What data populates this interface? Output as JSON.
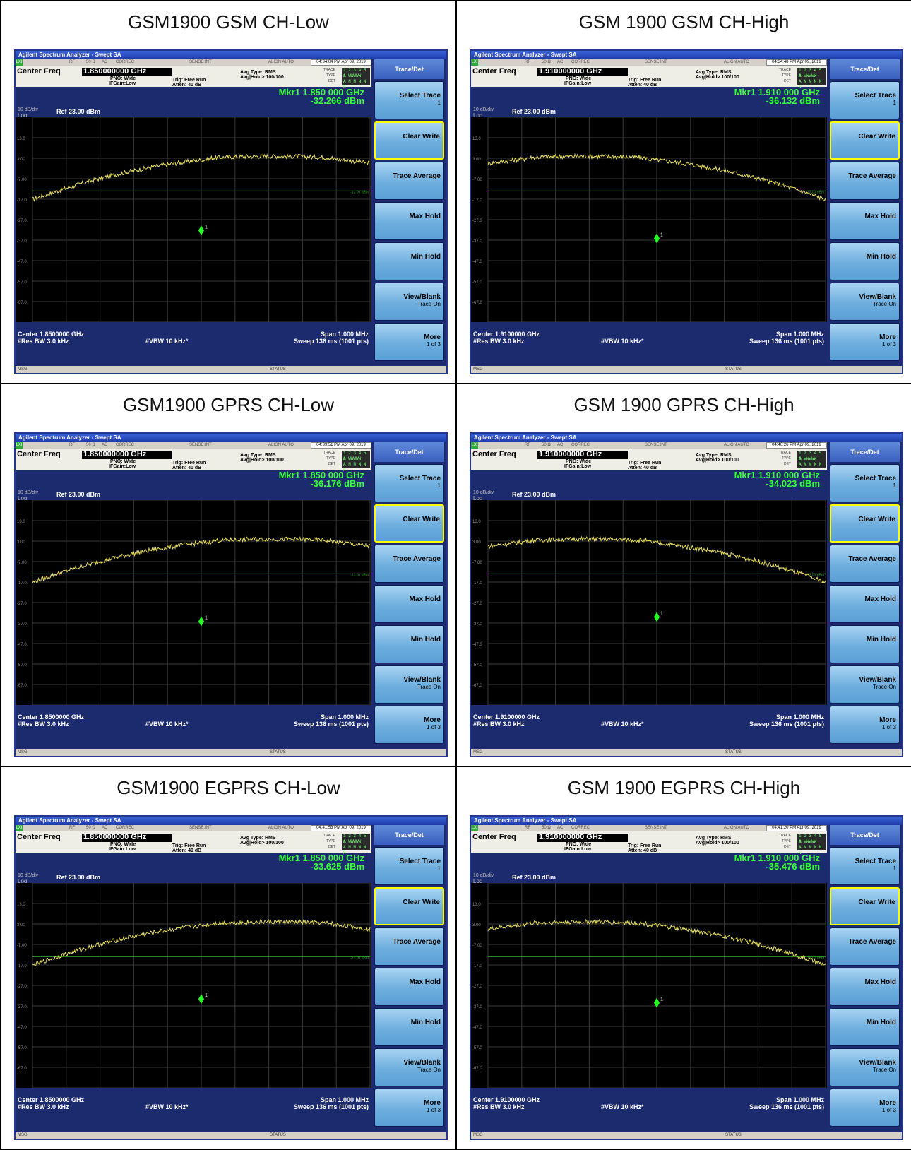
{
  "common": {
    "window_title": "Agilent Spectrum Analyzer - Swept SA",
    "status_items": [
      "RF",
      "50 Ω",
      "AC",
      "CORREC",
      "SENSE:INT",
      "ALIGN AUTO"
    ],
    "lxi": "LXI",
    "center_freq_label": "Center Freq",
    "pno": "PNO: Wide",
    "ifgain": "IFGain:Low",
    "trig": "Trig: Free Run",
    "atten": "Atten: 40 dB",
    "avg_type": "Avg Type: RMS",
    "avg_hold": "Avg|Hold> 100/100",
    "trace_labels": [
      "TRACE",
      "TYPE",
      "DET"
    ],
    "trace_vals": [
      "1 2 3 4 5 6",
      "A WWWWW",
      "A N N N N N"
    ],
    "scale_div": "10 dB/div",
    "scale_log": "Log",
    "ref": "Ref 23.00 dBm",
    "y_ticks": [
      "13.0",
      "3.00",
      "-7.00",
      "-17.0",
      "-27.0",
      "-37.0",
      "-47.0",
      "-57.0",
      "-67.0"
    ],
    "limit_label": "-13.00 dBm",
    "res_bw": "#Res BW 3.0 kHz",
    "vbw": "#VBW 10 kHz*",
    "span": "Span 1.000 MHz",
    "sweep": "Sweep  136 ms (1001 pts)",
    "msg": "MSG",
    "status": "STATUS",
    "marker_number": "1",
    "softkeys": {
      "header": "Trace/Det",
      "items": [
        {
          "main": "Select Trace",
          "sub": "1"
        },
        {
          "main": "Clear Write",
          "sub": ""
        },
        {
          "main": "Trace Average",
          "sub": ""
        },
        {
          "main": "Max Hold",
          "sub": ""
        },
        {
          "main": "Min Hold",
          "sub": ""
        },
        {
          "main": "View/Blank",
          "sub": "Trace On"
        },
        {
          "main": "More",
          "sub": "1 of 3"
        }
      ]
    },
    "colors": {
      "trace": "#e8e060",
      "marker": "#22ff22",
      "grid": "#3a3a3a",
      "limit": "#2e9e2e",
      "softkey": "#79b7e6",
      "title_bar": "#2a4ec0"
    }
  },
  "panels": [
    {
      "title": "GSM1900 GSM CH-Low",
      "time": "04:34:04 PM Apr 09, 2019",
      "center_freq": "1.850000000 GHz",
      "marker_freq": "Mkr1 1.850 000 GHz",
      "marker_amp": "-32.266 dBm",
      "center_label": "Center 1.8500000 GHz"
    },
    {
      "title": "GSM 1900 GSM CH-High",
      "time": "04:34:48 PM Apr 09, 2019",
      "center_freq": "1.910000000 GHz",
      "marker_freq": "Mkr1 1.910 000 GHz",
      "marker_amp": "-36.132 dBm",
      "center_label": "Center 1.9100000 GHz"
    },
    {
      "title": "GSM1900 GPRS CH-Low",
      "time": "04:39:51 PM Apr 09, 2019",
      "center_freq": "1.850000000 GHz",
      "marker_freq": "Mkr1 1.850 000 GHz",
      "marker_amp": "-36.176 dBm",
      "center_label": "Center 1.8500000 GHz"
    },
    {
      "title": "GSM 1900 GPRS CH-High",
      "time": "04:40:26 PM Apr 09, 2019",
      "center_freq": "1.910000000 GHz",
      "marker_freq": "Mkr1 1.910 000 GHz",
      "marker_amp": "-34.023 dBm",
      "center_label": "Center 1.9100000 GHz"
    },
    {
      "title": "GSM1900 EGPRS CH-Low",
      "time": "04:41:53 PM Apr 09, 2019",
      "center_freq": "1.850000000 GHz",
      "marker_freq": "Mkr1 1.850 000 GHz",
      "marker_amp": "-33.625 dBm",
      "center_label": "Center 1.8500000 GHz"
    },
    {
      "title": "GSM 1900 EGPRS CH-High",
      "time": "04:41:20 PM Apr 09, 2019",
      "center_freq": "1.910000000 GHz",
      "marker_freq": "Mkr1 1.910 000 GHz",
      "marker_amp": "-35.476 dBm",
      "center_label": "Center 1.9100000 GHz"
    }
  ]
}
